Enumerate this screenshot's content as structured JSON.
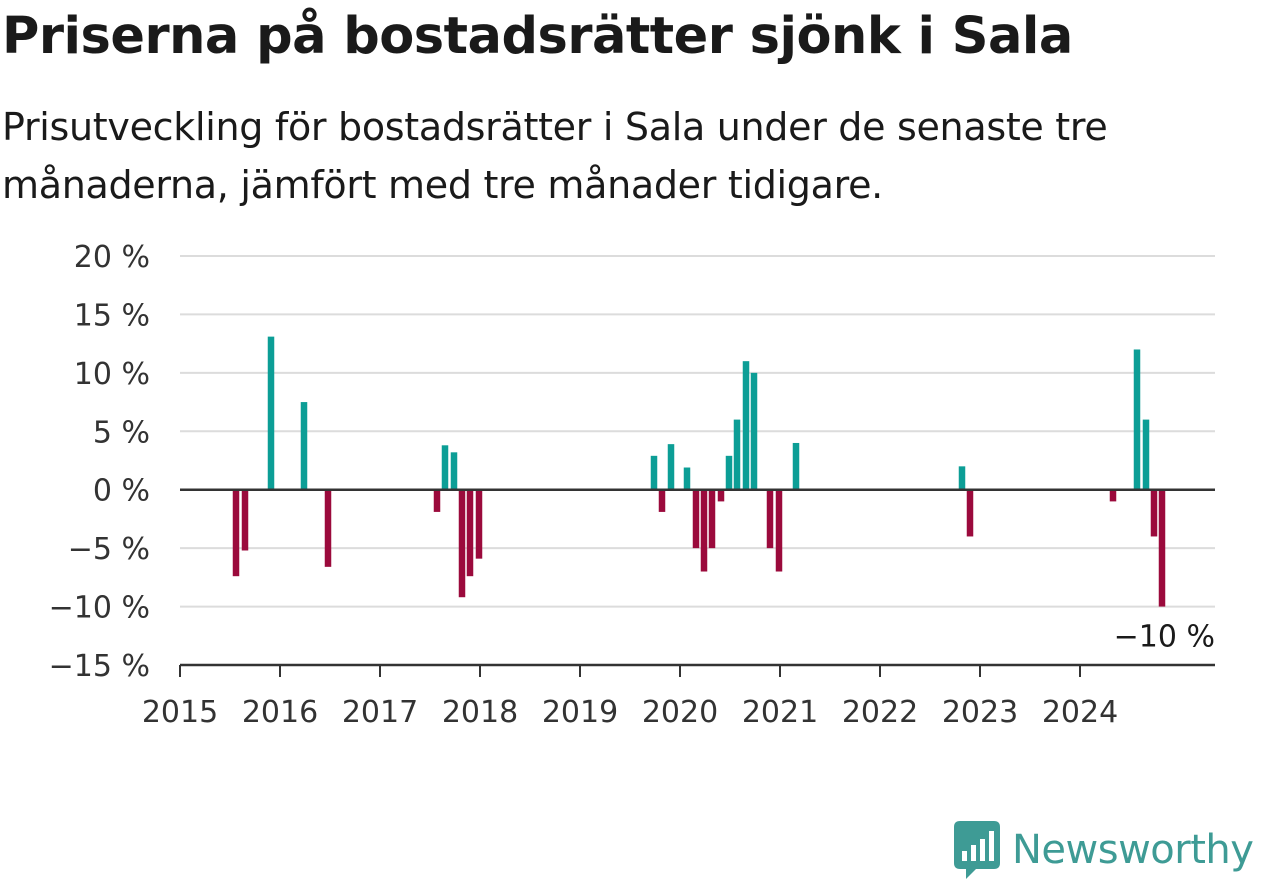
{
  "header": {
    "title": "Priserna på bostadsrätter sjönk i Sala",
    "subtitle": "Prisutveckling för bostadsrätter i Sala under de senaste tre månaderna, jämfört med tre månader tidigare."
  },
  "colors": {
    "positive": "#0c9e96",
    "negative": "#9b0a3c",
    "grid": "#dcdcdc",
    "axis": "#333333"
  },
  "chart_data": {
    "type": "bar",
    "xlabel": "",
    "ylabel": "",
    "ylim": [
      -15,
      20
    ],
    "xlim": [
      2015,
      2025.35
    ],
    "yticks": [
      20,
      15,
      10,
      5,
      0,
      -5,
      -10,
      -15
    ],
    "ytick_labels": [
      "20 %",
      "15 %",
      "10 %",
      "5 %",
      "0 %",
      "−5 %",
      "−10 %",
      "−15 %"
    ],
    "xticks": [
      2015,
      2016,
      2017,
      2018,
      2019,
      2020,
      2021,
      2022,
      2023,
      2024
    ],
    "xtick_labels": [
      "2015",
      "2016",
      "2017",
      "2018",
      "2019",
      "2020",
      "2021",
      "2022",
      "2023",
      "2024"
    ],
    "grid": true,
    "bars": [
      {
        "x": 2015.56,
        "value": -7.4
      },
      {
        "x": 2015.65,
        "value": -5.2
      },
      {
        "x": 2015.91,
        "value": 13.1
      },
      {
        "x": 2016.24,
        "value": 7.5
      },
      {
        "x": 2016.48,
        "value": -6.6
      },
      {
        "x": 2017.57,
        "value": -1.9
      },
      {
        "x": 2017.65,
        "value": 3.8
      },
      {
        "x": 2017.74,
        "value": 3.2
      },
      {
        "x": 2017.82,
        "value": -9.2
      },
      {
        "x": 2017.9,
        "value": -7.4
      },
      {
        "x": 2017.99,
        "value": -5.9
      },
      {
        "x": 2019.74,
        "value": 2.9
      },
      {
        "x": 2019.82,
        "value": -1.9
      },
      {
        "x": 2019.91,
        "value": 3.9
      },
      {
        "x": 2020.07,
        "value": 1.9
      },
      {
        "x": 2020.16,
        "value": -5.0
      },
      {
        "x": 2020.24,
        "value": -7.0
      },
      {
        "x": 2020.32,
        "value": -5.0
      },
      {
        "x": 2020.41,
        "value": -1.0
      },
      {
        "x": 2020.49,
        "value": 2.9
      },
      {
        "x": 2020.57,
        "value": 6.0
      },
      {
        "x": 2020.66,
        "value": 11.0
      },
      {
        "x": 2020.74,
        "value": 10.0
      },
      {
        "x": 2020.9,
        "value": -5.0
      },
      {
        "x": 2020.99,
        "value": -7.0
      },
      {
        "x": 2021.16,
        "value": 4.0
      },
      {
        "x": 2022.82,
        "value": 2.0
      },
      {
        "x": 2022.9,
        "value": -4.0
      },
      {
        "x": 2024.33,
        "value": -1.0
      },
      {
        "x": 2024.57,
        "value": 12.0
      },
      {
        "x": 2024.66,
        "value": 6.0
      },
      {
        "x": 2024.74,
        "value": -4.0
      },
      {
        "x": 2024.82,
        "value": -10.0
      }
    ],
    "annotations": [
      {
        "text": "−10 %",
        "x": 2024.82,
        "value": -10.0
      }
    ]
  },
  "branding": {
    "logo_text": "Newsworthy"
  }
}
